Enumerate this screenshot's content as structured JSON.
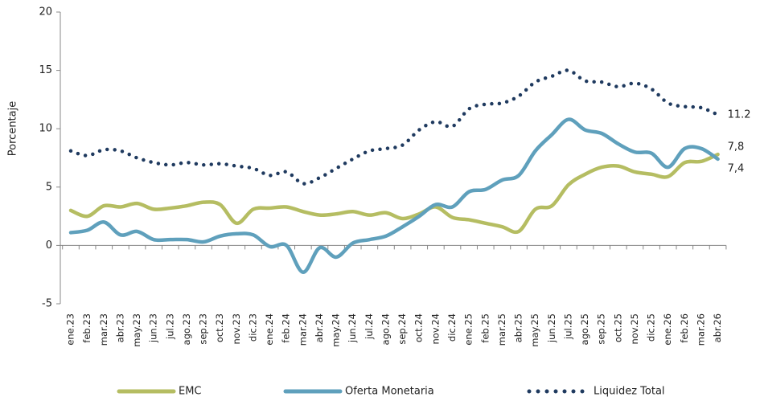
{
  "chart_data": {
    "type": "line",
    "y_label": "Porcentaje",
    "categories": [
      "ene.23",
      "feb.23",
      "mar.23",
      "abr.23",
      "may.23",
      "jun.23",
      "jul.23",
      "ago.23",
      "sep.23",
      "oct.23",
      "nov.23",
      "dic.23",
      "ene.24",
      "feb.24",
      "mar.24",
      "abr.24",
      "may.24",
      "jun.24",
      "jul.24",
      "ago.24",
      "sep.24",
      "oct.24",
      "nov.24",
      "dic.24",
      "ene.25",
      "feb.25",
      "mar.25",
      "abr.25",
      "may.25",
      "jun.25",
      "jul.25",
      "ago.25",
      "sep.25",
      "oct.25",
      "nov.25",
      "dic.25",
      "ene.26",
      "feb.26",
      "mar.26",
      "abr.26"
    ],
    "series": [
      {
        "name": "EMC",
        "color": "#b5bd62",
        "style": "solid",
        "end_label": "7,8",
        "values": [
          3.0,
          2.5,
          3.4,
          3.3,
          3.6,
          3.1,
          3.2,
          3.4,
          3.7,
          3.5,
          1.9,
          3.1,
          3.2,
          3.3,
          2.9,
          2.6,
          2.7,
          2.9,
          2.6,
          2.8,
          2.3,
          2.7,
          3.3,
          2.4,
          2.2,
          1.9,
          1.6,
          1.2,
          3.1,
          3.4,
          5.2,
          6.1,
          6.7,
          6.8,
          6.3,
          6.1,
          5.9,
          7.1,
          7.2,
          7.8
        ]
      },
      {
        "name": "Oferta Monetaria",
        "color": "#5fa0bc",
        "style": "solid",
        "end_label": "7,4",
        "values": [
          1.1,
          1.3,
          2.0,
          0.9,
          1.2,
          0.5,
          0.5,
          0.5,
          0.3,
          0.8,
          1.0,
          0.9,
          -0.1,
          0.0,
          -2.3,
          -0.2,
          -1.0,
          0.2,
          0.5,
          0.8,
          1.6,
          2.5,
          3.5,
          3.3,
          4.6,
          4.8,
          5.6,
          6.0,
          8.1,
          9.5,
          10.8,
          9.9,
          9.6,
          8.7,
          8.0,
          7.9,
          6.7,
          8.3,
          8.3,
          7.4
        ]
      },
      {
        "name": "Liquidez Total",
        "color": "#1f3a5f",
        "style": "dotted",
        "end_label": "11.2",
        "values": [
          8.1,
          7.7,
          8.2,
          8.1,
          7.5,
          7.1,
          6.9,
          7.1,
          6.9,
          7.0,
          6.8,
          6.6,
          6.0,
          6.3,
          5.3,
          5.8,
          6.6,
          7.4,
          8.1,
          8.3,
          8.6,
          9.9,
          10.6,
          10.2,
          11.7,
          12.1,
          12.2,
          12.8,
          14.0,
          14.5,
          15.0,
          14.1,
          14.0,
          13.6,
          13.9,
          13.4,
          12.2,
          11.9,
          11.8,
          11.2
        ]
      }
    ],
    "ylim": [
      -5,
      20
    ],
    "yticks": [
      -5,
      0,
      5,
      10,
      15,
      20
    ],
    "grid": false
  }
}
